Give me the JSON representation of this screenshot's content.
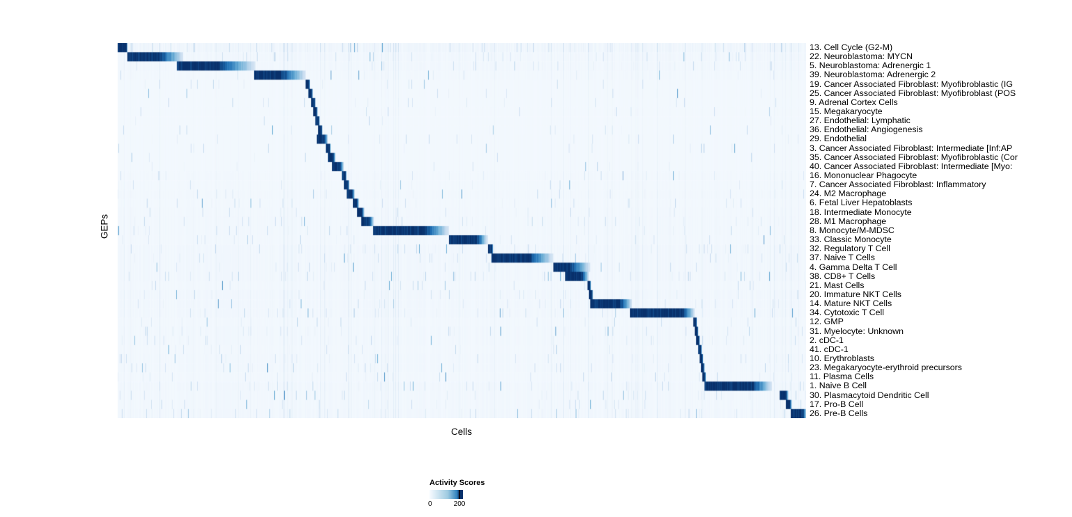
{
  "figure": {
    "x_axis_label": "Cells",
    "y_axis_label": "GEPs"
  },
  "legend": {
    "title": "Activity Scores",
    "min_label": "0",
    "max_label": "200"
  },
  "chart_data": {
    "type": "heatmap",
    "title": "",
    "xlabel": "Cells",
    "ylabel": "GEPs",
    "x_range_note": "columns are individual cells ordered by assigned program, no tick labels shown",
    "colormap": {
      "name": "Blues",
      "stops": [
        "#f7fbff",
        "#c6dbef",
        "#6baed6",
        "#2171b5",
        "#08306b"
      ]
    },
    "colorbar": {
      "title": "Activity Scores",
      "ticks": [
        0,
        200
      ],
      "position": "bottom"
    },
    "rows": [
      {
        "label": "13. Cell Cycle (G2-M)",
        "block": [
          0.0,
          0.014
        ],
        "core": 0.9,
        "noise": 0.55
      },
      {
        "label": "22. Neuroblastoma: MYCN",
        "block": [
          0.014,
          0.095
        ],
        "core": 0.55,
        "noise": 0.3
      },
      {
        "label": "5. Neuroblastoma: Adrenergic 1",
        "block": [
          0.085,
          0.2
        ],
        "core": 0.5,
        "noise": 0.25
      },
      {
        "label": "39. Neuroblastoma: Adrenergic 2",
        "block": [
          0.198,
          0.273
        ],
        "core": 0.5,
        "noise": 0.2
      },
      {
        "label": "19. Cancer Associated Fibroblast: Myofibroblastic (IG",
        "block": [
          0.273,
          0.279
        ],
        "core": 0.8,
        "noise": 0.12
      },
      {
        "label": "25. Cancer Associated Fibroblast: Myofibroblast (POS",
        "block": [
          0.277,
          0.283
        ],
        "core": 0.8,
        "noise": 0.12
      },
      {
        "label": "9. Adrenal Cortex Cells",
        "block": [
          0.281,
          0.287
        ],
        "core": 0.8,
        "noise": 0.1
      },
      {
        "label": "15. Megakaryocyte",
        "block": [
          0.284,
          0.29
        ],
        "core": 0.8,
        "noise": 0.12
      },
      {
        "label": "27. Endothelial: Lymphatic",
        "block": [
          0.287,
          0.293
        ],
        "core": 0.8,
        "noise": 0.1
      },
      {
        "label": "36. Endothelial: Angiogenesis",
        "block": [
          0.291,
          0.297
        ],
        "core": 0.8,
        "noise": 0.1
      },
      {
        "label": "29. Endothelial",
        "block": [
          0.289,
          0.305
        ],
        "core": 0.7,
        "noise": 0.12
      },
      {
        "label": "3. Cancer Associated Fibroblast: Intermediate [Inf:AP",
        "block": [
          0.302,
          0.309
        ],
        "core": 0.8,
        "noise": 0.12
      },
      {
        "label": "35. Cancer Associated Fibroblast: Myofibroblastic (Cor",
        "block": [
          0.305,
          0.316
        ],
        "core": 0.7,
        "noise": 0.12
      },
      {
        "label": "40. Cancer Associated Fibroblast: Intermediate [Myo:",
        "block": [
          0.311,
          0.328
        ],
        "core": 0.7,
        "noise": 0.12
      },
      {
        "label": "16. Mononuclear Phagocyte",
        "block": [
          0.325,
          0.332
        ],
        "core": 0.8,
        "noise": 0.18
      },
      {
        "label": "7. Cancer Associated Fibroblast: Inflammatory",
        "block": [
          0.328,
          0.336
        ],
        "core": 0.8,
        "noise": 0.15
      },
      {
        "label": "24. M2 Macrophage",
        "block": [
          0.332,
          0.344
        ],
        "core": 0.7,
        "noise": 0.2
      },
      {
        "label": "6. Fetal Liver Hepatoblasts",
        "block": [
          0.341,
          0.35
        ],
        "core": 0.7,
        "noise": 0.15
      },
      {
        "label": "18. Intermediate Monocyte",
        "block": [
          0.347,
          0.358
        ],
        "core": 0.7,
        "noise": 0.2
      },
      {
        "label": "28. M1 Macrophage",
        "block": [
          0.353,
          0.372
        ],
        "core": 0.6,
        "noise": 0.22
      },
      {
        "label": "8. Monocyte/M-MDSC",
        "block": [
          0.371,
          0.481
        ],
        "core": 0.65,
        "noise": 0.22
      },
      {
        "label": "33. Classic Monocyte",
        "block": [
          0.481,
          0.537
        ],
        "core": 0.7,
        "noise": 0.2
      },
      {
        "label": "32. Regulatory T Cell",
        "block": [
          0.537,
          0.545
        ],
        "core": 0.8,
        "noise": 0.3
      },
      {
        "label": "37. Naive T Cells",
        "block": [
          0.542,
          0.632
        ],
        "core": 0.6,
        "noise": 0.3
      },
      {
        "label": "4. Gamma Delta T Cell",
        "block": [
          0.632,
          0.686
        ],
        "core": 0.45,
        "noise": 0.3
      },
      {
        "label": "38. CD8+ T Cells",
        "block": [
          0.65,
          0.684
        ],
        "core": 0.7,
        "noise": 0.3
      },
      {
        "label": "21. Mast Cells",
        "block": [
          0.682,
          0.687
        ],
        "core": 0.8,
        "noise": 0.2
      },
      {
        "label": "20. Immature NKT Cells",
        "block": [
          0.684,
          0.69
        ],
        "core": 0.8,
        "noise": 0.3
      },
      {
        "label": "14. Mature NKT Cells",
        "block": [
          0.686,
          0.747
        ],
        "core": 0.7,
        "noise": 0.3
      },
      {
        "label": "34. Cytotoxic T Cell",
        "block": [
          0.744,
          0.838
        ],
        "core": 0.8,
        "noise": 0.3
      },
      {
        "label": "12. GMP",
        "block": [
          0.836,
          0.841
        ],
        "core": 0.8,
        "noise": 0.2
      },
      {
        "label": "31. Myelocyte: Unknown",
        "block": [
          0.838,
          0.843
        ],
        "core": 0.8,
        "noise": 0.25
      },
      {
        "label": "2. cDC-1",
        "block": [
          0.84,
          0.845
        ],
        "core": 0.8,
        "noise": 0.25
      },
      {
        "label": "41. cDC-1",
        "block": [
          0.843,
          0.848
        ],
        "core": 0.8,
        "noise": 0.2
      },
      {
        "label": "10. Erythroblasts",
        "block": [
          0.845,
          0.85
        ],
        "core": 0.8,
        "noise": 0.25
      },
      {
        "label": "23. Megakaryocyte-erythroid precursors",
        "block": [
          0.847,
          0.852
        ],
        "core": 0.8,
        "noise": 0.25
      },
      {
        "label": "11. Plasma Cells",
        "block": [
          0.849,
          0.854
        ],
        "core": 0.8,
        "noise": 0.2
      },
      {
        "label": "1. Naive B Cell",
        "block": [
          0.852,
          0.95
        ],
        "core": 0.7,
        "noise": 0.3
      },
      {
        "label": "30. Plasmacytoid Dendritic Cell",
        "block": [
          0.961,
          0.974
        ],
        "core": 0.7,
        "noise": 0.25
      },
      {
        "label": "17. Pro-B Cell",
        "block": [
          0.97,
          0.979
        ],
        "core": 0.7,
        "noise": 0.25
      },
      {
        "label": "26. Pre-B Cells",
        "block": [
          0.977,
          1.0
        ],
        "core": 0.8,
        "noise": 0.3
      }
    ]
  }
}
